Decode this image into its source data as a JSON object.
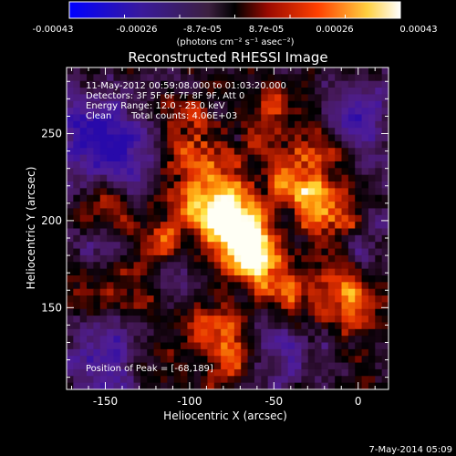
{
  "colorbar": {
    "tick_labels": [
      "-0.00043",
      "-0.00026",
      "-8.7e-05",
      "8.7e-05",
      "0.00026",
      "0.00043"
    ],
    "unit_label": "(photons cm⁻² s⁻¹ asec⁻²)",
    "range": [
      -0.00043,
      0.00043
    ]
  },
  "title": "Reconstructed RHESSI Image",
  "annotations": {
    "time_range": "11-May-2012 00:59:08.000 to 01:03:20.000",
    "detectors": "Detectors: 3F 5F 6F 7F 8F 9F, Att 0",
    "energy_range": "Energy Range: 12.0 - 25.0 keV",
    "clean": "Clean",
    "total_counts": "Total counts: 4.06E+03",
    "peak": "Position of Peak = [-68,189]"
  },
  "footer": {
    "date": "7-May-2014 05:09"
  },
  "chart_data": {
    "type": "heatmap",
    "xlabel": "Heliocentric X (arcsec)",
    "ylabel": "Heliocentric Y (arcsec)",
    "xlim": [
      -173,
      18
    ],
    "ylim": [
      103,
      288
    ],
    "xticks": [
      -150,
      -100,
      -50,
      0
    ],
    "xtick_labels": [
      "-150",
      "-100",
      "-50",
      "0"
    ],
    "yticks": [
      150,
      200,
      250
    ],
    "ytick_labels": [
      "150",
      "200",
      "250"
    ],
    "colormap": "blue-purple-red-yellow-white",
    "peak_position": [
      -68,
      189
    ]
  }
}
